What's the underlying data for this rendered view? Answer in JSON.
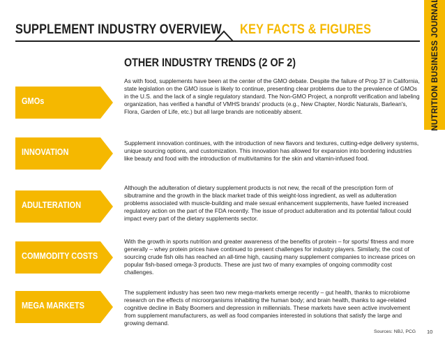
{
  "header": {
    "title_left": "SUPPLEMENT INDUSTRY OVERVIEW",
    "title_right": "KEY FACTS & FIGURES"
  },
  "vertical_label": "NUTRITION BUSINESS JOURNAL",
  "subtitle": "OTHER INDUSTRY TRENDS (2 OF 2)",
  "colors": {
    "accent": "#f5b800",
    "text": "#1f1f1f"
  },
  "sections": [
    {
      "label": "GMOs",
      "text": "As with food, supplements have been at the center of the GMO debate. Despite the failure of Prop 37 in California, state legislation on the GMO issue is likely to continue, presenting clear problems due to the prevalence of GMOs in the U.S. and the lack of a single regulatory standard. The Non-GMO Project, a nonprofit verification and labeling organization, has verified a handful of VMHS brands' products (e.g., New Chapter, Nordic Naturals, Barlean's, Flora, Garden of Life, etc.) but all large brands are noticeably absent."
    },
    {
      "label": "INNOVATION",
      "text": "Supplement innovation continues, with the introduction of new flavors and textures, cutting-edge delivery systems, unique sourcing options, and customization. This innovation has allowed for expansion into bordering industries like beauty and food with the introduction of multivitamins for the skin and vitamin-infused food."
    },
    {
      "label": "ADULTERATION",
      "text": "Although the adulteration of dietary supplement products is not new, the recall of the prescription form of sibutramine and the growth in the black market trade of this weight-loss ingredient, as well as adulteration problems associated with muscle-building and male sexual enhancement supplements, have fueled increased regulatory action on the part of the FDA recently. The issue of product adulteration and its potential fallout could impact every part of the dietary supplements sector."
    },
    {
      "label": "COMMODITY COSTS",
      "text": "With the growth in sports nutrition and greater awareness of the benefits of protein – for sports/ fitness and more generally – whey protein prices have continued to present challenges for industry players. Similarly, the cost of sourcing crude fish oils has reached an all-time high, causing many supplement companies to increase prices on popular fish-based omega-3 products. These are just two of many examples of ongoing commodity cost challenges."
    },
    {
      "label": "MEGA MARKETS",
      "text": "The supplement industry has seen two new mega-markets emerge recently – gut health, thanks to microbiome research on the effects of microorganisms inhabiting the human body; and brain health, thanks to age-related cognitive decline in Baby Boomers and depression in millennials. These markets have seen active involvement from supplement manufacturers, as well as food companies interested in solutions that satisfy the large and growing demand."
    }
  ],
  "footer": {
    "sources": "Sources: NBJ, PCG",
    "page_number": "10"
  }
}
